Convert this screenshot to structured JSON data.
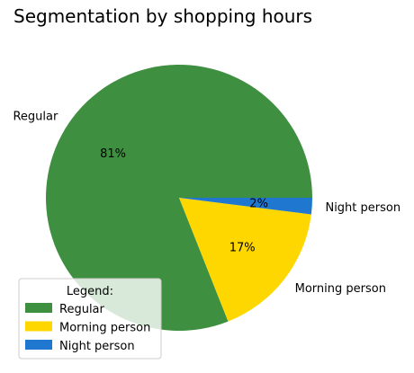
{
  "chart_data": {
    "type": "pie",
    "title": "Segmentation by shopping hours",
    "slices": [
      {
        "label": "Regular",
        "value": 81,
        "pct_label": "81%",
        "color": "#3f8f40"
      },
      {
        "label": "Morning person",
        "value": 17,
        "pct_label": "17%",
        "color": "#ffd700"
      },
      {
        "label": "Night person",
        "value": 2,
        "pct_label": "2%",
        "color": "#1f77d0"
      }
    ],
    "legend": {
      "title": "Legend:",
      "placement": "lower-left"
    }
  }
}
